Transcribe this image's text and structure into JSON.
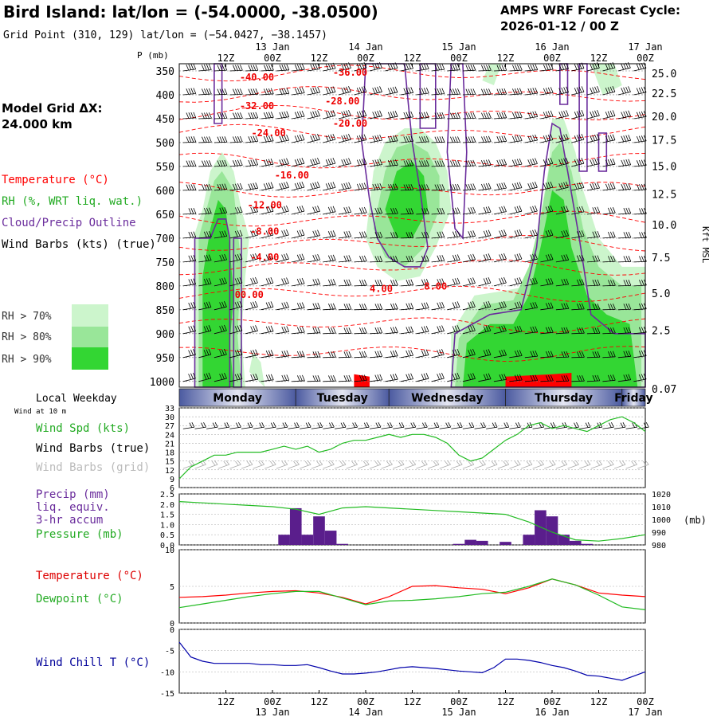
{
  "header": {
    "title": "Bird Island:  lat/lon = (-54.0000, -38.0500)",
    "subtitle": "Grid Point (310, 129) lat/lon = (−54.0427, −38.1457)",
    "forecast_title": "AMPS WRF Forecast Cycle:",
    "forecast_cycle": "2026-01-12 / 00  Z"
  },
  "side_labels": {
    "model_grid": "Model Grid ΔX:",
    "model_grid_value": " 24.000 km",
    "temperature": "Temperature (°C)",
    "rh": "RH (%, WRT liq. wat.)",
    "cloud": "Cloud/Precip Outline",
    "wind_barbs": "Wind Barbs (kts) (true)",
    "rh70": "RH > 70%",
    "rh80": "RH > 80%",
    "rh90": "RH > 90%",
    "local_weekday": "Local Weekday",
    "wind_at_10m": "Wind at 10 m",
    "wind_spd": "Wind Spd (kts)",
    "wind_barbs_true": "Wind Barbs (true)",
    "wind_barbs_grid": "Wind Barbs (grid)",
    "precip1": "Precip (mm)",
    "precip2": "liq. equiv.",
    "precip3": "3-hr accum",
    "pressure": "Pressure (mb)",
    "temp2": "Temperature (°C)",
    "dewpoint": "Dewpoint (°C)",
    "windchill": "Wind Chill T (°C)"
  },
  "colors": {
    "temperature": "#ff0000",
    "rh70": "#ccf5cc",
    "rh80": "#99e699",
    "rh90": "#33d633",
    "cloud": "#6a2c9c",
    "precip": "#5a1e8c",
    "pressure": "#22bb22",
    "dewpoint": "#22bb22",
    "windchill": "#0000aa",
    "surface_red": "#ff0000"
  },
  "chart_data": [
    {
      "type": "heatmap",
      "name": "time-height cross-section",
      "y_label": "P (mb)",
      "y2_label": "Kft MSL",
      "pressure_ticks": [
        "350",
        "400",
        "450",
        "500",
        "550",
        "600",
        "650",
        "700",
        "750",
        "800",
        "850",
        "900",
        "950",
        "1000"
      ],
      "pressure_values": [
        350,
        400,
        450,
        500,
        550,
        600,
        650,
        700,
        750,
        800,
        850,
        900,
        950,
        1000
      ],
      "height_ticks": [
        {
          "label": "25.0",
          "p": 355
        },
        {
          "label": "22.5",
          "p": 397
        },
        {
          "label": "20.0",
          "p": 445
        },
        {
          "label": "17.5",
          "p": 494
        },
        {
          "label": "15.0",
          "p": 549
        },
        {
          "label": "12.5",
          "p": 608
        },
        {
          "label": "10.0",
          "p": 672
        },
        {
          "label": "7.5",
          "p": 740
        },
        {
          "label": "5.0",
          "p": 815
        },
        {
          "label": "2.5",
          "p": 893
        },
        {
          "label": "0.07",
          "p": 1015
        }
      ],
      "temperature_contour_labels": [
        {
          "label": "-40.00",
          "h": 20,
          "p": 370
        },
        {
          "label": "-36.00",
          "h": 44,
          "p": 360
        },
        {
          "label": "-32.00",
          "h": 20,
          "p": 430
        },
        {
          "label": "-28.00",
          "h": 42,
          "p": 420
        },
        {
          "label": "-24.00",
          "h": 23,
          "p": 487
        },
        {
          "label": "-20.00",
          "h": 44,
          "p": 467
        },
        {
          "label": "-16.00",
          "h": 29,
          "p": 575
        },
        {
          "label": "-12.00",
          "h": 22,
          "p": 638
        },
        {
          "label": "-8.00",
          "h": 22,
          "p": 693
        },
        {
          "label": "-4.00",
          "h": 22,
          "p": 747
        },
        {
          "label": "00.00",
          "h": 18,
          "p": 825
        },
        {
          "label": "4.00",
          "h": 52,
          "p": 813
        },
        {
          "label": "8.00",
          "h": 66,
          "p": 808
        }
      ]
    },
    {
      "type": "line",
      "name": "10 m wind speed",
      "ylabel": "Wind Spd (kts)",
      "ylim": [
        6,
        33
      ],
      "yticks": [
        "33",
        "30",
        "27",
        "24",
        "21",
        "18",
        "15",
        "12",
        "9",
        "6"
      ],
      "ytick_values": [
        33,
        30,
        27,
        24,
        21,
        18,
        15,
        12,
        9,
        6
      ],
      "x": [
        0,
        3,
        6,
        9,
        12,
        15,
        18,
        21,
        24,
        27,
        30,
        33,
        36,
        39,
        42,
        45,
        48,
        51,
        54,
        57,
        60,
        63,
        66,
        69,
        72,
        75,
        78,
        81,
        84,
        87,
        90,
        93,
        96,
        99,
        102,
        105,
        108,
        111,
        114,
        117,
        120
      ],
      "values": [
        9,
        13,
        15,
        17,
        17,
        18,
        18,
        18,
        19,
        20,
        19,
        20,
        18,
        19,
        21,
        22,
        22,
        23,
        24,
        23,
        24,
        24,
        23,
        21,
        17,
        15,
        16,
        19,
        22,
        24,
        27,
        28,
        26,
        27,
        26,
        25,
        27,
        29,
        30,
        28,
        25
      ]
    },
    {
      "type": "bar",
      "name": "3-hr precip and pressure",
      "ylabel": "Precip (mm)",
      "ylim": [
        0,
        2.5
      ],
      "yticks": [
        "2.5",
        "2.0",
        "1.5",
        "1.0",
        "0.5",
        "0.0"
      ],
      "ytick_values": [
        2.5,
        2.0,
        1.5,
        1.0,
        0.5,
        0.0
      ],
      "bar_x": [
        27,
        30,
        33,
        36,
        39,
        42,
        72,
        75,
        78,
        84,
        90,
        93,
        96,
        99,
        102,
        105
      ],
      "bar_values": [
        0.5,
        1.8,
        0.5,
        1.4,
        0.7,
        0.05,
        0.05,
        0.25,
        0.2,
        0.15,
        0.5,
        1.7,
        1.4,
        0.5,
        0.2,
        0.05
      ],
      "y2label": "Pressure (mb)",
      "y2lim": [
        980,
        1020
      ],
      "y2ticks": [
        "1020",
        "1010",
        "1000",
        "990",
        "980"
      ],
      "y2tick_values": [
        1020,
        1010,
        1000,
        990,
        980
      ],
      "pressure_x": [
        0,
        6,
        12,
        18,
        24,
        30,
        36,
        42,
        48,
        54,
        60,
        66,
        72,
        78,
        84,
        90,
        96,
        102,
        108,
        114,
        120
      ],
      "pressure_values": [
        1014,
        1013,
        1012,
        1011,
        1010,
        1008,
        1004,
        1009,
        1010,
        1009,
        1008,
        1007,
        1006,
        1005,
        1004,
        998,
        990,
        984,
        983,
        985,
        988
      ]
    },
    {
      "type": "line",
      "name": "temperature and dewpoint",
      "ylim": [
        0,
        10
      ],
      "yticks": [
        "10",
        "5",
        "0"
      ],
      "ytick_values": [
        10,
        5,
        0
      ],
      "x": [
        0,
        6,
        12,
        18,
        24,
        30,
        36,
        42,
        48,
        54,
        60,
        66,
        72,
        78,
        84,
        90,
        96,
        102,
        108,
        114,
        120
      ],
      "series": [
        {
          "name": "Temperature",
          "values": [
            3.5,
            3.6,
            3.8,
            4.1,
            4.3,
            4.4,
            4.1,
            3.5,
            2.6,
            3.6,
            5.0,
            5.1,
            4.8,
            4.6,
            4.0,
            4.8,
            6.0,
            5.2,
            4.1,
            3.8,
            3.6
          ]
        },
        {
          "name": "Dewpoint",
          "values": [
            2.1,
            2.6,
            3.1,
            3.6,
            4.0,
            4.3,
            4.3,
            3.4,
            2.5,
            3.0,
            3.1,
            3.3,
            3.6,
            4.0,
            4.2,
            5.0,
            6.0,
            5.2,
            3.8,
            2.2,
            1.8
          ]
        }
      ]
    },
    {
      "type": "line",
      "name": "wind chill",
      "ylabel": "Wind Chill T (°C)",
      "ylim": [
        -15,
        0
      ],
      "yticks": [
        "0",
        "-5",
        "-10",
        "-15"
      ],
      "ytick_values": [
        0,
        -5,
        -10,
        -15
      ],
      "x": [
        0,
        3,
        6,
        9,
        12,
        15,
        18,
        21,
        24,
        27,
        30,
        33,
        36,
        39,
        42,
        45,
        48,
        51,
        54,
        57,
        60,
        63,
        66,
        69,
        72,
        75,
        78,
        81,
        84,
        87,
        90,
        93,
        96,
        99,
        102,
        105,
        108,
        111,
        114,
        117,
        120
      ],
      "values": [
        -3,
        -6.5,
        -7.5,
        -8,
        -8,
        -8,
        -8,
        -8.3,
        -8.3,
        -8.5,
        -8.5,
        -8.3,
        -9,
        -9.8,
        -10.5,
        -10.5,
        -10.3,
        -10,
        -9.5,
        -9,
        -8.8,
        -9,
        -9.2,
        -9.5,
        -9.8,
        -10,
        -10.2,
        -9,
        -7,
        -7,
        -7.3,
        -7.8,
        -8.5,
        -9,
        -9.8,
        -10.8,
        -11,
        -11.5,
        -12,
        -11,
        -10
      ]
    }
  ],
  "time_axis": {
    "top_hours": [
      "12Z",
      "00Z",
      "12Z",
      "00Z",
      "12Z",
      "00Z",
      "12Z",
      "00Z",
      "12Z",
      "00Z"
    ],
    "top_dates": [
      "13 Jan",
      "14 Jan",
      "15 Jan",
      "16 Jan",
      "17 Jan"
    ],
    "bottom_hours": [
      "12Z",
      "00Z",
      "12Z",
      "00Z",
      "12Z",
      "00Z",
      "12Z",
      "00Z",
      "12Z",
      "00Z"
    ],
    "bottom_dates": [
      "13 Jan",
      "14 Jan",
      "15 Jan",
      "16 Jan",
      "17 Jan"
    ],
    "weekdays": [
      "Monday",
      "Tuesday",
      "Wednesday",
      "Thursday",
      "Friday"
    ]
  }
}
